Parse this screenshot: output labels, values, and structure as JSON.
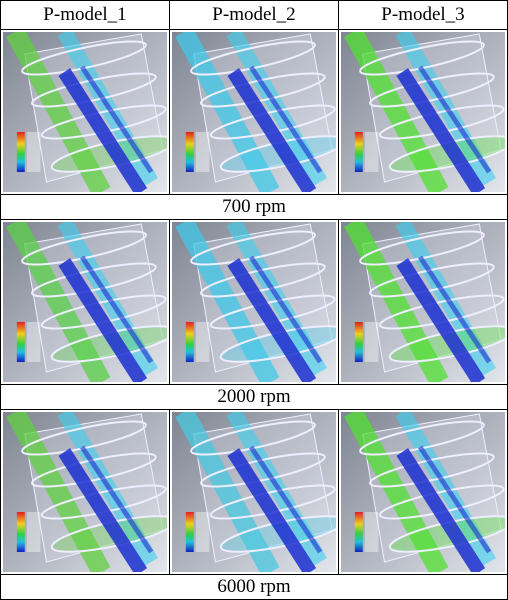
{
  "table": {
    "header": [
      "P-model_1",
      "P-model_2",
      "P-model_3"
    ],
    "rows": [
      {
        "label": "700 rpm"
      },
      {
        "label": "2000 rpm"
      },
      {
        "label": "6000 rpm"
      }
    ]
  }
}
